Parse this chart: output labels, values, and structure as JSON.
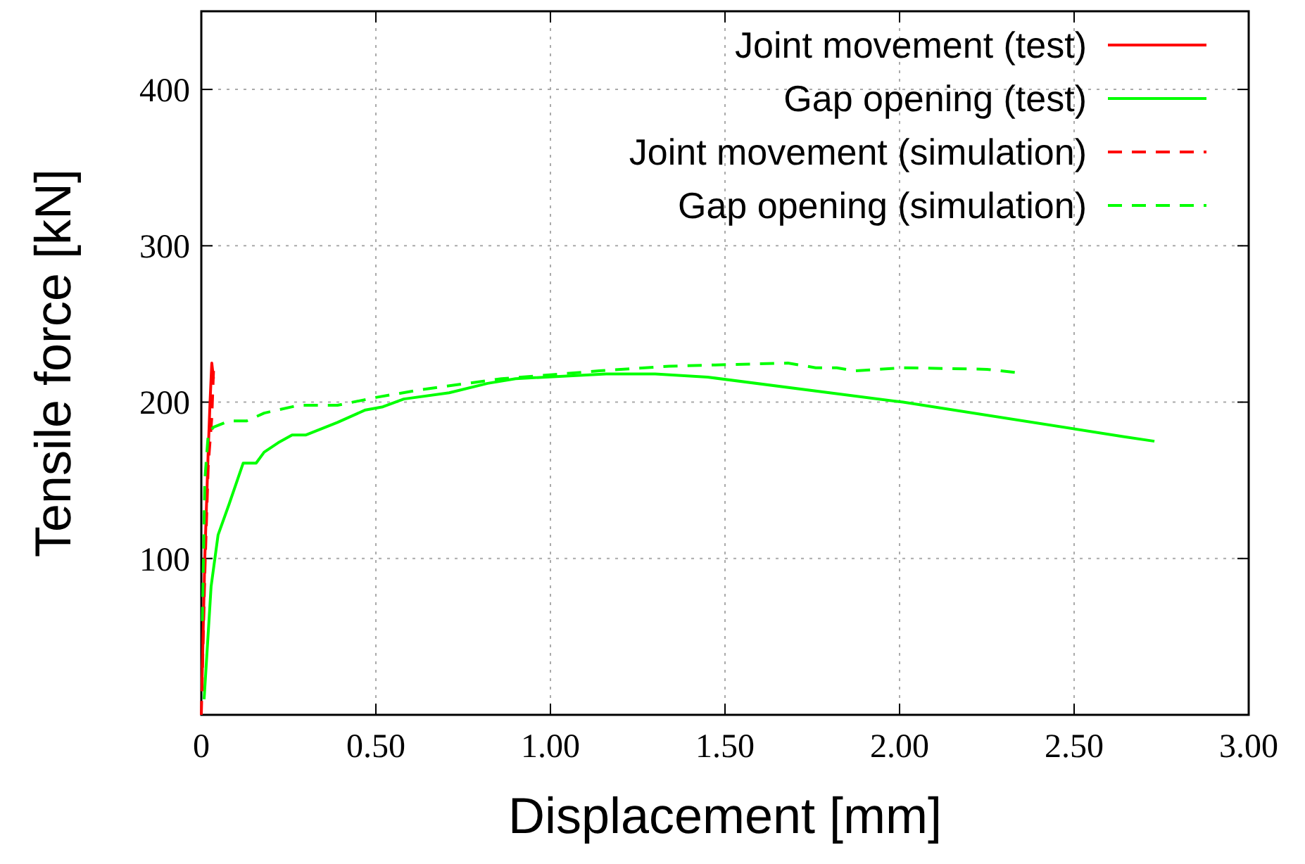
{
  "chart_data": {
    "type": "line",
    "xlabel": "Displacement [mm]",
    "ylabel": "Tensile force [kN]",
    "xlim": [
      0,
      3
    ],
    "ylim": [
      0,
      450
    ],
    "xticks": [
      0,
      {
        "value": 0.5,
        "label": "0.50"
      },
      {
        "value": 1,
        "label": "1.00"
      },
      {
        "value": 1.5,
        "label": "1.50"
      },
      {
        "value": 2,
        "label": "2.00"
      },
      {
        "value": 2.5,
        "label": "2.50"
      },
      {
        "value": 3,
        "label": "3.00"
      }
    ],
    "yticks": [
      100,
      200,
      300,
      400
    ],
    "grid": true,
    "legend": "top right",
    "series": [
      {
        "name": "Joint movement (test)",
        "color": "#ff0000",
        "line_style": "solid",
        "x": [
          0.002,
          0.01,
          0.02,
          0.025,
          0.03,
          0.035
        ],
        "values": [
          20,
          100,
          170,
          200,
          225,
          215
        ]
      },
      {
        "name": "Gap opening (test)",
        "color": "#00ff00",
        "line_style": "solid",
        "x": [
          0.008,
          0.028,
          0.048,
          0.08,
          0.12,
          0.157,
          0.18,
          0.22,
          0.26,
          0.3,
          0.39,
          0.47,
          0.52,
          0.58,
          0.71,
          0.82,
          0.9,
          1.16,
          1.3,
          1.45,
          2.01,
          2.64,
          2.73
        ],
        "values": [
          10,
          82,
          115,
          135,
          161,
          161,
          168,
          174,
          179,
          179,
          187,
          195,
          197,
          202,
          206,
          212,
          215,
          218,
          218,
          216,
          200,
          178,
          175
        ]
      },
      {
        "name": "Joint movement (simulation)",
        "color": "#ff0000",
        "line_style": "dashed",
        "x": [
          0,
          0.01,
          0.02,
          0.03,
          0.035
        ],
        "values": [
          0,
          90,
          160,
          190,
          220
        ]
      },
      {
        "name": "Gap opening (simulation)",
        "color": "#00ff00",
        "line_style": "dashed",
        "x": [
          0.003,
          0.01,
          0.02,
          0.035,
          0.08,
          0.13,
          0.18,
          0.28,
          0.39,
          0.5,
          0.63,
          0.86,
          1.14,
          1.34,
          1.51,
          1.68,
          1.76,
          1.82,
          1.87,
          2.01,
          2.25,
          2.33
        ],
        "values": [
          60,
          150,
          180,
          184,
          188,
          188,
          193,
          198,
          198,
          203,
          208,
          215,
          220,
          223,
          224,
          225,
          222,
          222,
          220,
          222,
          221,
          219
        ]
      }
    ]
  }
}
